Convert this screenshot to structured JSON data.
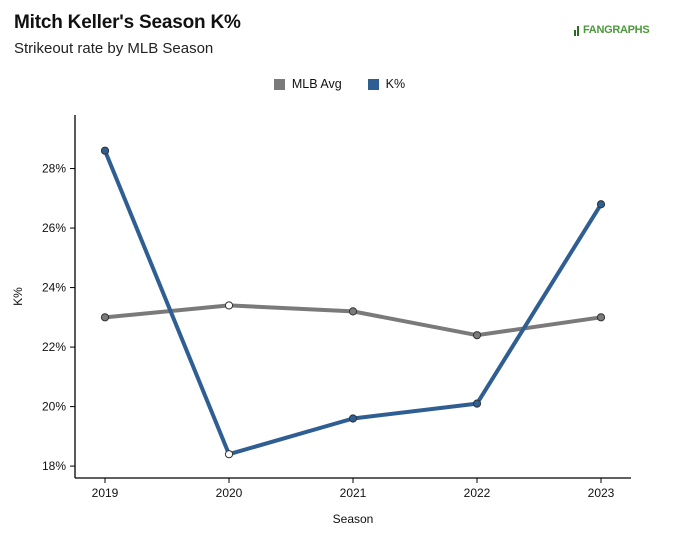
{
  "header": {
    "title": "Mitch Keller's Season K%",
    "subtitle": "Strikeout rate by MLB Season",
    "logo_text": "FANGRAPHS"
  },
  "colors": {
    "mlb_avg": "#7a7a7a",
    "k_pct": "#2f5e93",
    "logo": "#4a9a3a"
  },
  "chart_data": {
    "type": "line",
    "xlabel": "Season",
    "ylabel": "K%",
    "categories": [
      "2019",
      "2020",
      "2021",
      "2022",
      "2023"
    ],
    "yticks": [
      18,
      20,
      22,
      24,
      26,
      28
    ],
    "ytick_labels": [
      "18%",
      "20%",
      "22%",
      "24%",
      "26%",
      "28%"
    ],
    "ylim": [
      17.6,
      29.8
    ],
    "grid": false,
    "legend_position": "top-center",
    "series": [
      {
        "name": "MLB Avg",
        "color": "#7a7a7a",
        "values": [
          23.0,
          23.4,
          23.2,
          22.4,
          23.0
        ]
      },
      {
        "name": "K%",
        "color": "#2f5e93",
        "values": [
          28.6,
          18.4,
          19.6,
          20.1,
          26.8
        ]
      }
    ],
    "hollow_points": [
      "2020"
    ]
  }
}
